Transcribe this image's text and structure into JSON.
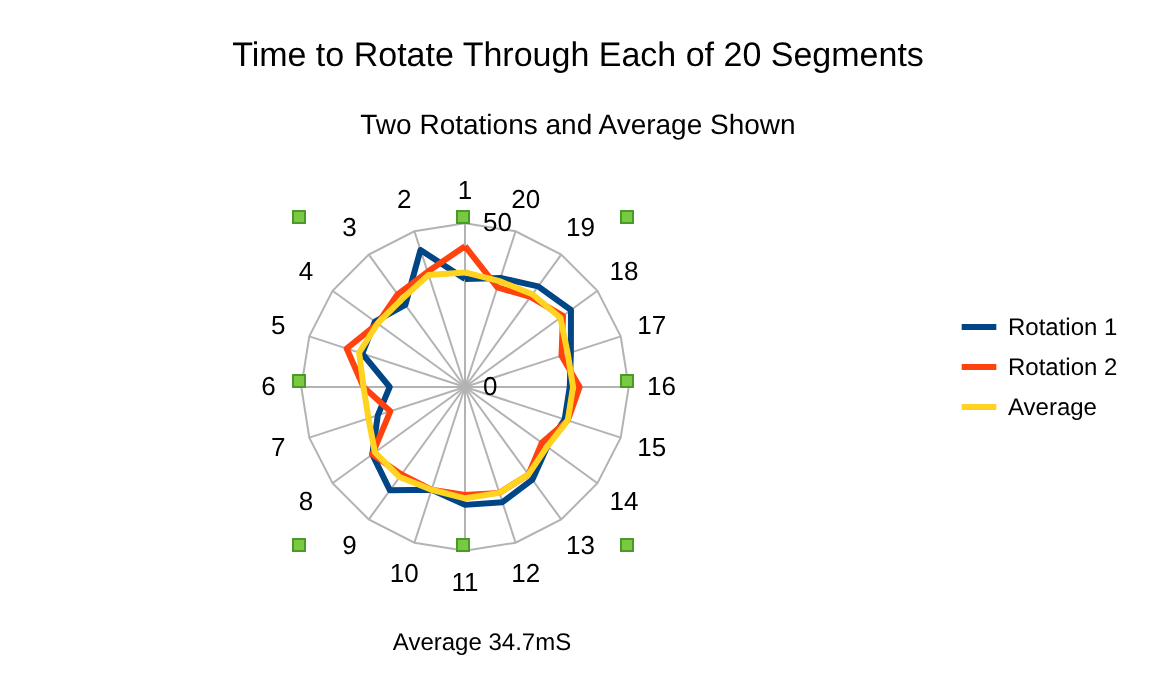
{
  "chart_data": {
    "type": "radar",
    "title": "Time to Rotate Through Each of 20 Segments",
    "subtitle": "Two Rotations and Average Shown",
    "categories": [
      "1",
      "20",
      "19",
      "18",
      "17",
      "16",
      "15",
      "14",
      "13",
      "12",
      "11",
      "10",
      "9",
      "8",
      "7",
      "6",
      "5",
      "4",
      "3",
      "2"
    ],
    "series": [
      {
        "name": "Rotation 1",
        "color": "#004586",
        "values": [
          33,
          35,
          38,
          40,
          34,
          32,
          32,
          31,
          35,
          37,
          36,
          33,
          39,
          35,
          28,
          23,
          33,
          34,
          31,
          44
        ]
      },
      {
        "name": "Rotation 2",
        "color": "#ff420e",
        "values": [
          43,
          32,
          34,
          37,
          31,
          35,
          33,
          29,
          33,
          34,
          33,
          33,
          33,
          35,
          24,
          31,
          38,
          33,
          35,
          37
        ]
      },
      {
        "name": "Average",
        "color": "#ffd320",
        "values": [
          35,
          34,
          35,
          36,
          33,
          33,
          33,
          31,
          33,
          34,
          34,
          33,
          34,
          34,
          31,
          31,
          34,
          33,
          33,
          36
        ]
      }
    ],
    "ylim": [
      0,
      50
    ],
    "yticks": [
      0,
      50
    ],
    "grid": true,
    "legend": "right",
    "marker": "none",
    "line_style": "solid",
    "annotations": [
      "Average 34.7mS"
    ]
  }
}
